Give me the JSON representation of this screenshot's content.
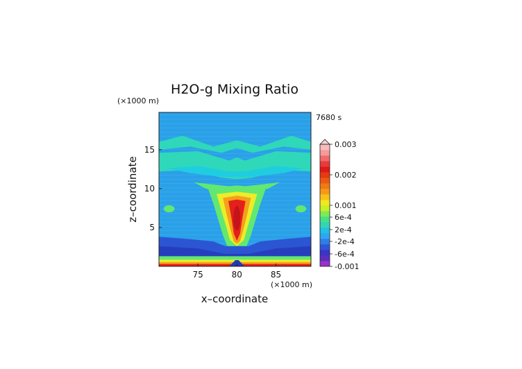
{
  "chart_data": {
    "type": "heatmap",
    "title": "H2O-g Mixing Ratio",
    "time_label": "7680 s",
    "xlabel": "x–coordinate",
    "ylabel": "z–coordinate",
    "x_unit": "(×1000 m)",
    "z_unit": "(×1000 m)",
    "xlim": [
      70,
      89.5
    ],
    "zlim": [
      0,
      19.8
    ],
    "x_ticks": [
      75,
      80,
      85
    ],
    "z_ticks": [
      5,
      10,
      15
    ],
    "colorbar": {
      "ticks": [
        "0.003",
        "0.002",
        "0.001",
        "6e-4",
        "2e-4",
        "-2e-4",
        "-6e-4",
        "-0.001"
      ],
      "levels": [
        "#9b30c8",
        "#5a2fbf",
        "#3b34c8",
        "#2f55d8",
        "#2f7ee6",
        "#2fa6f0",
        "#1fc2e4",
        "#35d3b4",
        "#45e08a",
        "#7fea54",
        "#c8ef28",
        "#f2e81c",
        "#f6c21a",
        "#f59a16",
        "#f07a14",
        "#ec5a12",
        "#e63a10",
        "#e01818",
        "#e83b3b",
        "#f06a6a",
        "#f69a9a",
        "#fabbbb"
      ]
    }
  }
}
